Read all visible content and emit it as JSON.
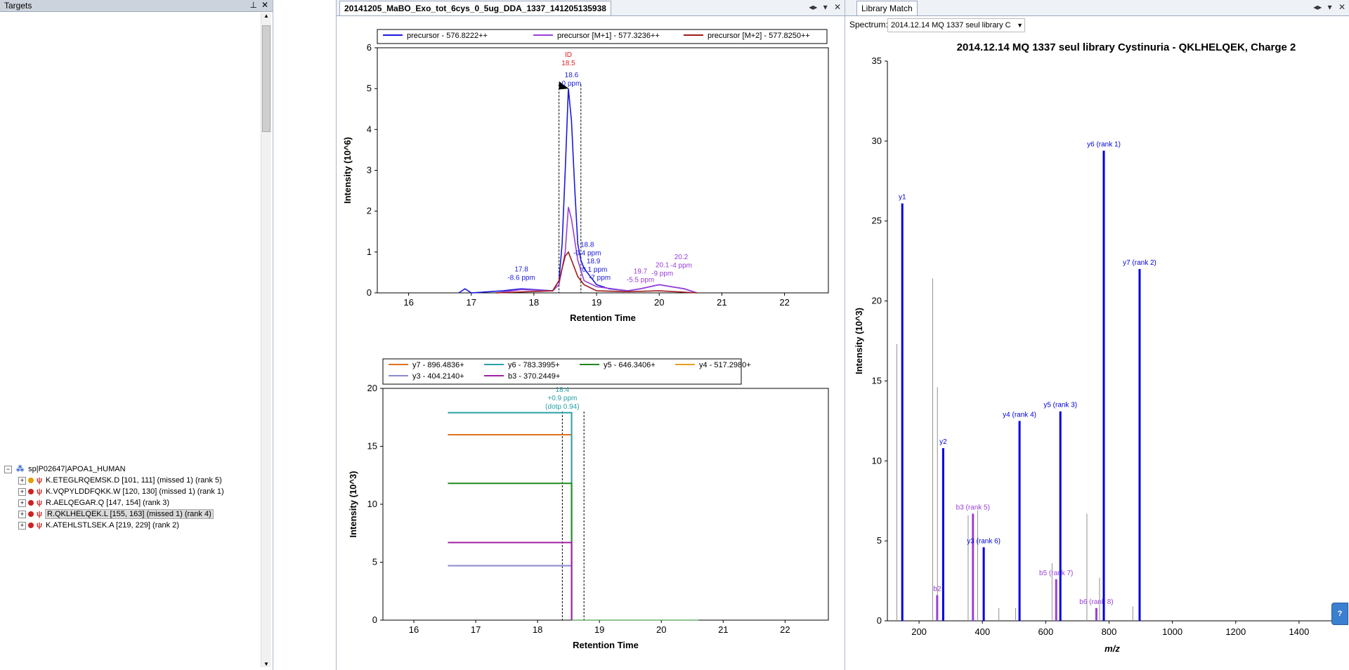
{
  "targets": {
    "title": "Targets",
    "pin_icon": "pin-icon",
    "close_icon": "close-icon",
    "protein": {
      "label": "sp|P02647|APOA1_HUMAN"
    },
    "peptides": [
      {
        "label": "K.ETEGLRQEMSK.D [101, 111] (missed 1) (rank 5)",
        "dot_color": "#e0a000",
        "selected": false
      },
      {
        "label": "K.VQPYLDDFQKK.W [120, 130] (missed 1) (rank 1)",
        "dot_color": "#cc2222",
        "selected": false
      },
      {
        "label": "R.AELQEGAR.Q [147, 154] (rank 3)",
        "dot_color": "#cc2222",
        "selected": false
      },
      {
        "label": "R.QKLHELQEK.L [155, 163] (missed 1) (rank 4)",
        "dot_color": "#cc2222",
        "selected": true
      },
      {
        "label": "K.ATEHLSTLSEK.A [219, 229] (rank 2)",
        "dot_color": "#cc2222",
        "selected": false
      }
    ]
  },
  "chromatogram_panel": {
    "tab_title": "20141205_MaBO_Exo_tot_6cys_0_5ug_DDA_1337_141205135938",
    "controls": [
      "◂▸",
      "▾",
      "✕"
    ]
  },
  "library_panel": {
    "tab_title": "Library Match",
    "spectrum_label": "Spectrum:",
    "spectrum_value": "2014.12.14 MQ 1337 seul library C",
    "controls": [
      "◂▸",
      "▾",
      "✕"
    ]
  },
  "colors": {
    "precursor": "#1a1adc",
    "precursor_m1": "#9a40d8",
    "precursor_m2": "#a01a1a",
    "y7": "#e07020",
    "y6": "#2aa0a8",
    "y5": "#208a20",
    "y4": "#e8a020",
    "y3": "#8a8ad0",
    "b3": "#a020a0",
    "lib_y": "#0000dd",
    "lib_b": "#9a40d8",
    "lib_other": "#909090"
  },
  "chart_data": [
    {
      "type": "line",
      "xlabel": "Retention Time",
      "ylabel": "Intensity (10^6)",
      "xlim": [
        15.5,
        22.7
      ],
      "ylim": [
        0,
        6
      ],
      "x_ticks": [
        "16",
        "17",
        "18",
        "19",
        "20",
        "21",
        "22"
      ],
      "y_ticks": [
        "0",
        "1",
        "2",
        "3",
        "4",
        "5",
        "6"
      ],
      "legend_placement": "top",
      "legend": [
        "precursor - 576.8222++",
        "precursor [M+1] - 577.3236++",
        "precursor [M+2] - 577.8250++"
      ],
      "series": [
        {
          "name": "precursor - 576.8222++",
          "x": [
            16.8,
            16.9,
            17.0,
            17.5,
            17.8,
            18.3,
            18.4,
            18.45,
            18.5,
            18.55,
            18.6,
            18.65,
            18.7,
            18.75,
            18.8,
            18.9,
            19.0,
            19.2,
            19.5,
            19.7,
            20.0,
            20.2,
            20.4,
            20.6
          ],
          "y": [
            0,
            0.1,
            0,
            0.05,
            0.1,
            0.05,
            0.3,
            1.2,
            3.0,
            5.0,
            4.2,
            2.6,
            1.2,
            0.8,
            0.6,
            0.4,
            0.2,
            0.1,
            0.05,
            0.1,
            0.2,
            0.15,
            0.1,
            0
          ]
        },
        {
          "name": "precursor [M+1] - 577.3236++",
          "x": [
            17.4,
            17.8,
            18.3,
            18.4,
            18.5,
            18.55,
            18.6,
            18.7,
            18.8,
            19.0,
            19.5,
            19.7,
            20.0,
            20.2,
            20.4,
            20.6
          ],
          "y": [
            0,
            0.08,
            0.05,
            0.2,
            1.0,
            2.1,
            1.8,
            0.8,
            0.3,
            0.15,
            0.05,
            0.1,
            0.2,
            0.15,
            0.1,
            0
          ]
        },
        {
          "name": "precursor [M+2] - 577.8250++",
          "x": [
            17.4,
            18.3,
            18.4,
            18.5,
            18.55,
            18.6,
            18.7,
            18.8,
            19.0,
            19.5,
            20.0,
            20.6
          ],
          "y": [
            0,
            0.05,
            0.3,
            0.9,
            1.0,
            0.8,
            0.4,
            0.2,
            0.05,
            0.03,
            0.05,
            0
          ]
        }
      ],
      "annotations": [
        {
          "text": [
            "ID",
            "18.5"
          ],
          "color": "#e02020",
          "x": 18.55,
          "y": 5.5
        },
        {
          "text": [
            "18.6",
            "0 ppm"
          ],
          "color": "#1a1adc",
          "x": 18.6,
          "y": 5.0
        },
        {
          "text": [
            "17.8",
            "-8.6 ppm"
          ],
          "color": "#1a1adc",
          "x": 17.8,
          "y": 0.25
        },
        {
          "text": [
            "18.8",
            "-0.4 ppm"
          ],
          "color": "#1a1adc",
          "x": 18.85,
          "y": 0.85
        },
        {
          "text": [
            "18.9",
            "-0.1 ppm"
          ],
          "color": "#1a1adc",
          "x": 18.95,
          "y": 0.45
        },
        {
          "text": [
            "-7 ppm"
          ],
          "color": "#1a1adc",
          "x": 19.05,
          "y": 0.25
        },
        {
          "text": [
            "19.7",
            "-5.5 ppm"
          ],
          "color": "#9a40d8",
          "x": 19.7,
          "y": 0.2
        },
        {
          "text": [
            "20.1",
            "-9 ppm"
          ],
          "color": "#9a40d8",
          "x": 20.05,
          "y": 0.35
        },
        {
          "text": [
            "20.2",
            "-4 ppm"
          ],
          "color": "#9a40d8",
          "x": 20.35,
          "y": 0.55
        }
      ],
      "boundaries": [
        18.4,
        18.75
      ]
    },
    {
      "type": "line",
      "xlabel": "Retention Time",
      "ylabel": "Intensity (10^3)",
      "xlim": [
        15.5,
        22.7
      ],
      "ylim": [
        0,
        20
      ],
      "x_ticks": [
        "16",
        "17",
        "18",
        "19",
        "20",
        "21",
        "22"
      ],
      "y_ticks": [
        "0",
        "5",
        "10",
        "15",
        "20"
      ],
      "legend_placement": "top",
      "legend": [
        "y7 - 896.4836+",
        "y6 - 783.3995+",
        "y5 - 646.3406+",
        "y4 - 517.2980+",
        "y3 - 404.2140+",
        "b3 - 370.2449+"
      ],
      "series": [
        {
          "name": "y7 - 896.4836+",
          "x0": 16.55,
          "x1": 18.55,
          "value": 16.0
        },
        {
          "name": "y6 - 783.3995+",
          "x0": 16.55,
          "x1": 18.55,
          "value": 17.9
        },
        {
          "name": "y5 - 646.3406+",
          "x0": 16.55,
          "x1": 18.55,
          "value": 11.8
        },
        {
          "name": "y4 - 517.2980+",
          "x0": 16.55,
          "x1": 18.55,
          "value": 0
        },
        {
          "name": "y3 - 404.2140+",
          "x0": 16.55,
          "x1": 18.55,
          "value": 4.7
        },
        {
          "name": "b3 - 370.2449+",
          "x0": 16.55,
          "x1": 18.55,
          "value": 6.7
        }
      ],
      "annotations": [
        {
          "text": [
            "18.4",
            "+0.9 ppm",
            "(dotp 0.94)"
          ],
          "color": "#2aa0a8",
          "x": 18.4,
          "y": 18.0
        }
      ],
      "boundaries": [
        18.4,
        18.75
      ]
    },
    {
      "type": "bar",
      "title": "2014.12.14 MQ 1337 seul library Cystinuria - QKLHELQEK, Charge 2",
      "xlabel": "m/z",
      "ylabel": "Intensity (10^3)",
      "xlim": [
        100,
        1520
      ],
      "ylim": [
        0,
        35
      ],
      "x_ticks": [
        "200",
        "400",
        "600",
        "800",
        "1000",
        "1200",
        "1400"
      ],
      "y_ticks": [
        "0",
        "5",
        "10",
        "15",
        "20",
        "25",
        "30",
        "35"
      ],
      "peaks": [
        {
          "mz": 130,
          "intensity": 17.3,
          "kind": "other"
        },
        {
          "mz": 147.1,
          "intensity": 26.1,
          "kind": "y",
          "label": "y1"
        },
        {
          "mz": 243,
          "intensity": 21.4,
          "kind": "other"
        },
        {
          "mz": 258,
          "intensity": 14.6,
          "kind": "other"
        },
        {
          "mz": 257.2,
          "intensity": 1.6,
          "kind": "b",
          "label": "b2"
        },
        {
          "mz": 276.2,
          "intensity": 10.8,
          "kind": "y",
          "label": "y2"
        },
        {
          "mz": 355,
          "intensity": 6.6,
          "kind": "other"
        },
        {
          "mz": 370.2,
          "intensity": 6.7,
          "kind": "b",
          "label": "b3 (rank 5)"
        },
        {
          "mz": 385,
          "intensity": 6.9,
          "kind": "other"
        },
        {
          "mz": 404.2,
          "intensity": 4.6,
          "kind": "y",
          "label": "y3 (rank 6)"
        },
        {
          "mz": 452,
          "intensity": 0.8,
          "kind": "other"
        },
        {
          "mz": 505,
          "intensity": 0.8,
          "kind": "other"
        },
        {
          "mz": 517.3,
          "intensity": 12.5,
          "kind": "y",
          "label": "y4 (rank 4)"
        },
        {
          "mz": 620,
          "intensity": 3.6,
          "kind": "other"
        },
        {
          "mz": 633,
          "intensity": 2.6,
          "kind": "b",
          "label": "b5 (rank 7)"
        },
        {
          "mz": 646.3,
          "intensity": 13.1,
          "kind": "y",
          "label": "y5 (rank 3)"
        },
        {
          "mz": 730,
          "intensity": 6.7,
          "kind": "other"
        },
        {
          "mz": 760,
          "intensity": 0.8,
          "kind": "b",
          "label": "b6 (rank 8)"
        },
        {
          "mz": 770,
          "intensity": 2.7,
          "kind": "other"
        },
        {
          "mz": 783.4,
          "intensity": 29.4,
          "kind": "y",
          "label": "y6 (rank 1)"
        },
        {
          "mz": 875,
          "intensity": 0.9,
          "kind": "other"
        },
        {
          "mz": 896.5,
          "intensity": 22.0,
          "kind": "y",
          "label": "y7 (rank 2)"
        }
      ]
    }
  ]
}
